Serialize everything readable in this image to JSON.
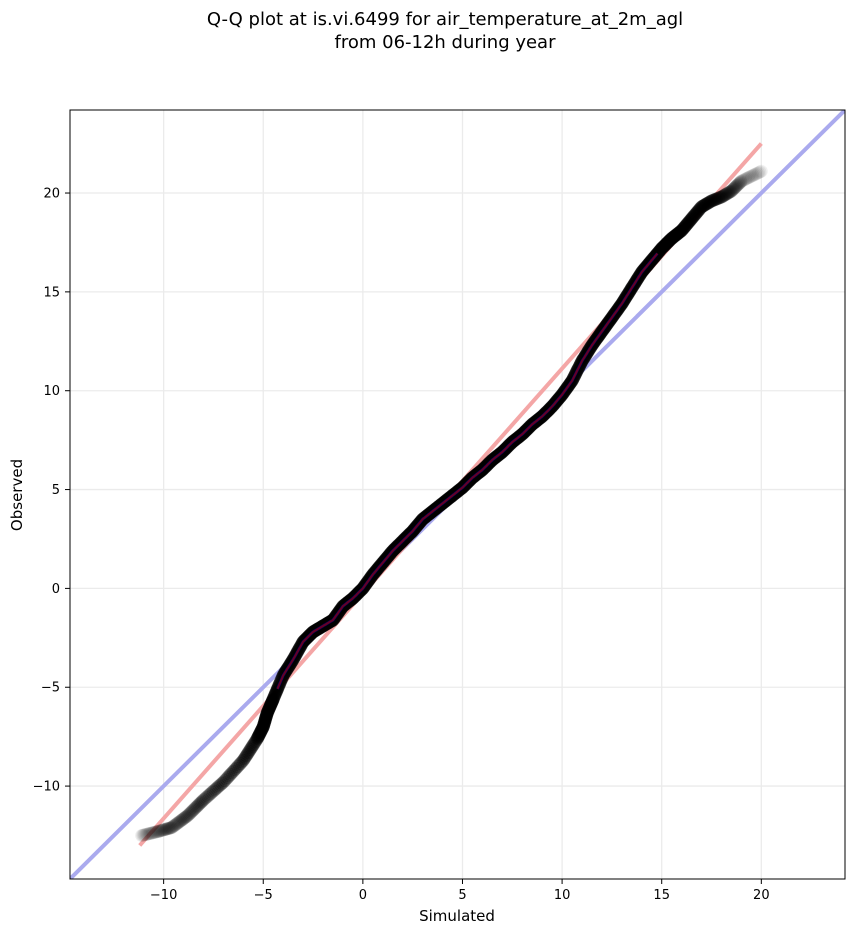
{
  "chart_data": {
    "type": "scatter",
    "title_lines": [
      "Q-Q plot at is.vi.6499 for air_temperature_at_2m_agl",
      "from 06-12h during year"
    ],
    "xlabel": "Simulated",
    "ylabel": "Observed",
    "xlim": [
      -14.7,
      24.2
    ],
    "ylim": [
      -14.7,
      24.2
    ],
    "xticks": [
      -10,
      -5,
      0,
      5,
      10,
      15,
      20
    ],
    "yticks": [
      -10,
      -5,
      0,
      5,
      10,
      15,
      20
    ],
    "xtick_labels": [
      "−10",
      "−5",
      "0",
      "5",
      "10",
      "15",
      "20"
    ],
    "ytick_labels": [
      "−10",
      "−5",
      "0",
      "5",
      "10",
      "15",
      "20"
    ],
    "grid": true,
    "colors": {
      "points": "#000000",
      "identity_line": "#aaaaee",
      "fit_line": "#f4a6a6",
      "inner_red": "#aa0000",
      "inner_blue": "#0000aa",
      "grid": "#ebebeb"
    },
    "quantile_curve": {
      "x": [
        -11.1,
        -10.3,
        -9.6,
        -8.8,
        -8.0,
        -7.0,
        -6.0,
        -5.3,
        -5.0,
        -4.8,
        -4.5,
        -4.0,
        -3.5,
        -3.0,
        -2.5,
        -2.0,
        -1.5,
        -1.0,
        -0.5,
        0.0,
        0.5,
        1.0,
        1.5,
        2.0,
        2.5,
        3.0,
        3.5,
        4.0,
        4.5,
        5.0,
        5.5,
        6.0,
        6.5,
        7.0,
        7.5,
        8.0,
        8.5,
        9.0,
        9.5,
        10.0,
        10.5,
        11.0,
        11.5,
        12.0,
        12.5,
        13.0,
        13.5,
        14.0,
        14.5,
        15.0,
        15.5,
        16.0,
        16.5,
        17.0,
        17.5,
        18.0,
        18.5,
        19.0,
        20.0
      ],
      "y": [
        -12.5,
        -12.3,
        -12.1,
        -11.5,
        -10.7,
        -9.8,
        -8.7,
        -7.6,
        -7.0,
        -6.3,
        -5.6,
        -4.4,
        -3.6,
        -2.7,
        -2.2,
        -1.9,
        -1.6,
        -0.9,
        -0.5,
        0.0,
        0.7,
        1.3,
        1.9,
        2.4,
        2.9,
        3.5,
        3.9,
        4.3,
        4.7,
        5.1,
        5.6,
        6.0,
        6.5,
        6.9,
        7.4,
        7.8,
        8.3,
        8.7,
        9.2,
        9.8,
        10.5,
        11.5,
        12.3,
        13.0,
        13.7,
        14.4,
        15.2,
        16.0,
        16.6,
        17.2,
        17.7,
        18.1,
        18.7,
        19.3,
        19.6,
        19.8,
        20.1,
        20.6,
        21.1
      ]
    },
    "identity_line": {
      "x": [
        -14.7,
        24.2
      ],
      "y": [
        -14.7,
        24.2
      ]
    },
    "fit_line": {
      "x": [
        -11.2,
        20.0
      ],
      "y": [
        -13.0,
        22.5
      ]
    }
  }
}
